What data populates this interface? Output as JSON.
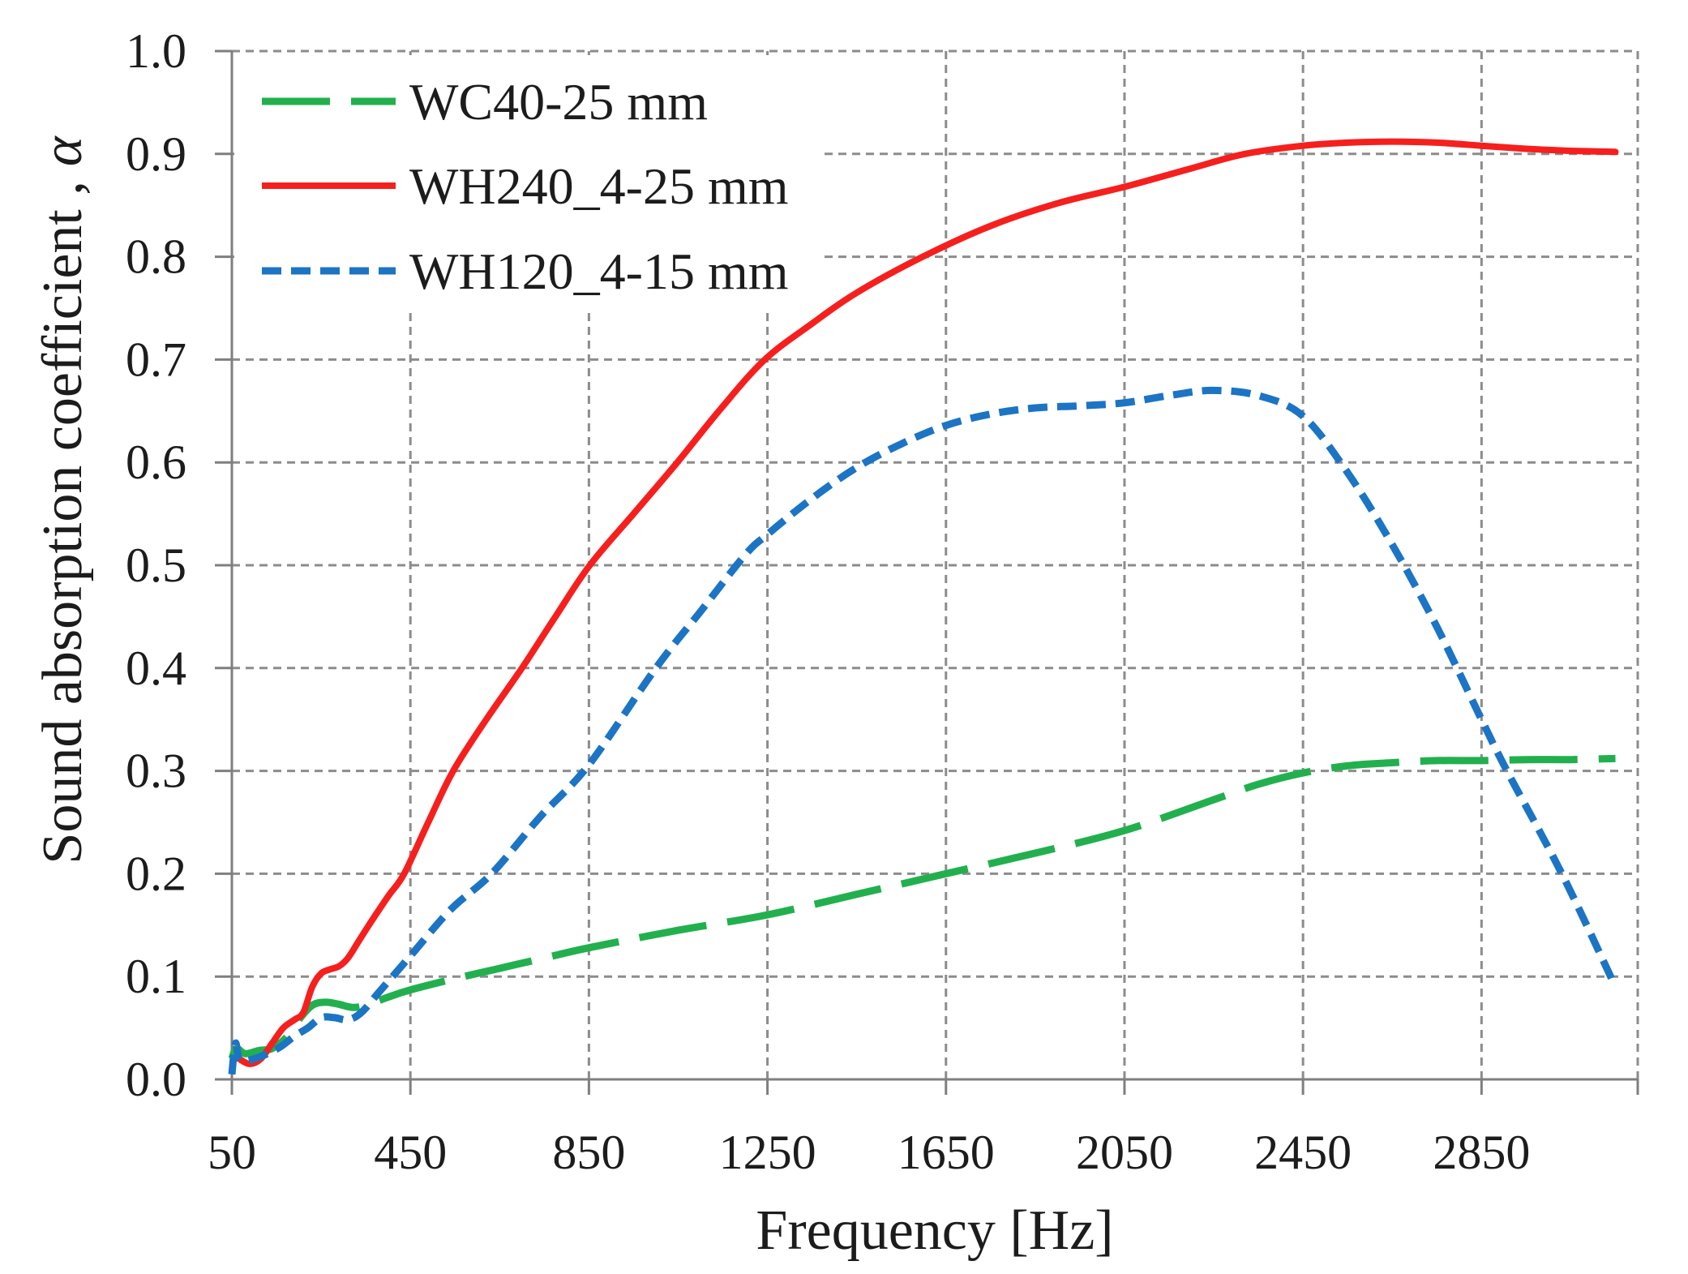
{
  "chart_data": {
    "type": "line",
    "title": "",
    "xlabel": "Frequency [Hz]",
    "ylabel": "Sound absorption coefficient ,",
    "ylabel_symbol": "α",
    "xlim": [
      50,
      3200
    ],
    "ylim": [
      0,
      1
    ],
    "xtick_labels": [
      "50",
      "450",
      "850",
      "1250",
      "1650",
      "2050",
      "2450",
      "2850"
    ],
    "ytick_labels": [
      "0.0",
      "0.1",
      "0.2",
      "0.3",
      "0.4",
      "0.5",
      "0.6",
      "0.7",
      "0.8",
      "0.9",
      "1.0"
    ],
    "grid": true,
    "legend_position": "top-left",
    "series": [
      {
        "name": "WC40-25 mm",
        "color": "#22b04e",
        "style": "long-dash",
        "x": [
          50,
          60,
          80,
          110,
          140,
          170,
          200,
          230,
          260,
          290,
          320,
          350,
          400,
          450,
          550,
          650,
          750,
          850,
          1050,
          1250,
          1450,
          1650,
          1850,
          2050,
          2250,
          2350,
          2450,
          2550,
          2650,
          2750,
          2850,
          2950,
          3050,
          3150
        ],
        "y": [
          0.02,
          0.03,
          0.025,
          0.028,
          0.03,
          0.04,
          0.058,
          0.072,
          0.075,
          0.073,
          0.07,
          0.072,
          0.08,
          0.087,
          0.098,
          0.108,
          0.118,
          0.128,
          0.145,
          0.16,
          0.18,
          0.2,
          0.22,
          0.242,
          0.272,
          0.287,
          0.298,
          0.305,
          0.308,
          0.31,
          0.31,
          0.311,
          0.311,
          0.312
        ]
      },
      {
        "name": "WH240_4-25 mm",
        "color": "#f5201e",
        "style": "solid",
        "x": [
          66,
          90,
          115,
          140,
          165,
          190,
          210,
          230,
          250,
          270,
          290,
          310,
          335,
          360,
          400,
          436,
          490,
          546,
          620,
          700,
          775,
          852,
          950,
          1048,
          1145,
          1244,
          1350,
          1450,
          1598,
          1750,
          1900,
          2050,
          2200,
          2320,
          2450,
          2550,
          2650,
          2750,
          2850,
          2950,
          3050,
          3150
        ],
        "y": [
          0.02,
          0.015,
          0.02,
          0.035,
          0.05,
          0.058,
          0.065,
          0.09,
          0.103,
          0.107,
          0.11,
          0.118,
          0.135,
          0.152,
          0.178,
          0.2,
          0.25,
          0.3,
          0.35,
          0.4,
          0.45,
          0.5,
          0.55,
          0.6,
          0.652,
          0.7,
          0.735,
          0.765,
          0.8,
          0.83,
          0.852,
          0.868,
          0.886,
          0.9,
          0.908,
          0.911,
          0.912,
          0.911,
          0.908,
          0.905,
          0.903,
          0.902
        ]
      },
      {
        "name": "WH120_4-15 mm",
        "color": "#1c74c4",
        "style": "short-dash",
        "x": [
          50,
          58,
          66,
          80,
          100,
          130,
          160,
          190,
          220,
          250,
          280,
          310,
          340,
          380,
          450,
          540,
          632,
          740,
          850,
          1000,
          1100,
          1200,
          1250,
          1350,
          1450,
          1550,
          1650,
          1750,
          1850,
          1950,
          2050,
          2150,
          2246,
          2350,
          2450,
          2550,
          2650,
          2750,
          2850,
          2907,
          3030,
          3150
        ],
        "y": [
          0.005,
          0.035,
          0.02,
          0.018,
          0.02,
          0.025,
          0.032,
          0.042,
          0.05,
          0.06,
          0.06,
          0.058,
          0.065,
          0.085,
          0.12,
          0.165,
          0.2,
          0.255,
          0.306,
          0.4,
          0.455,
          0.51,
          0.53,
          0.565,
          0.595,
          0.618,
          0.636,
          0.647,
          0.653,
          0.655,
          0.658,
          0.665,
          0.67,
          0.665,
          0.645,
          0.59,
          0.52,
          0.44,
          0.35,
          0.3,
          0.2,
          0.09
        ]
      }
    ]
  },
  "colors": {
    "grid": "#8c8c8c",
    "axis": "#7f7f7f",
    "text": "#1c1c1c",
    "background": "#ffffff"
  }
}
